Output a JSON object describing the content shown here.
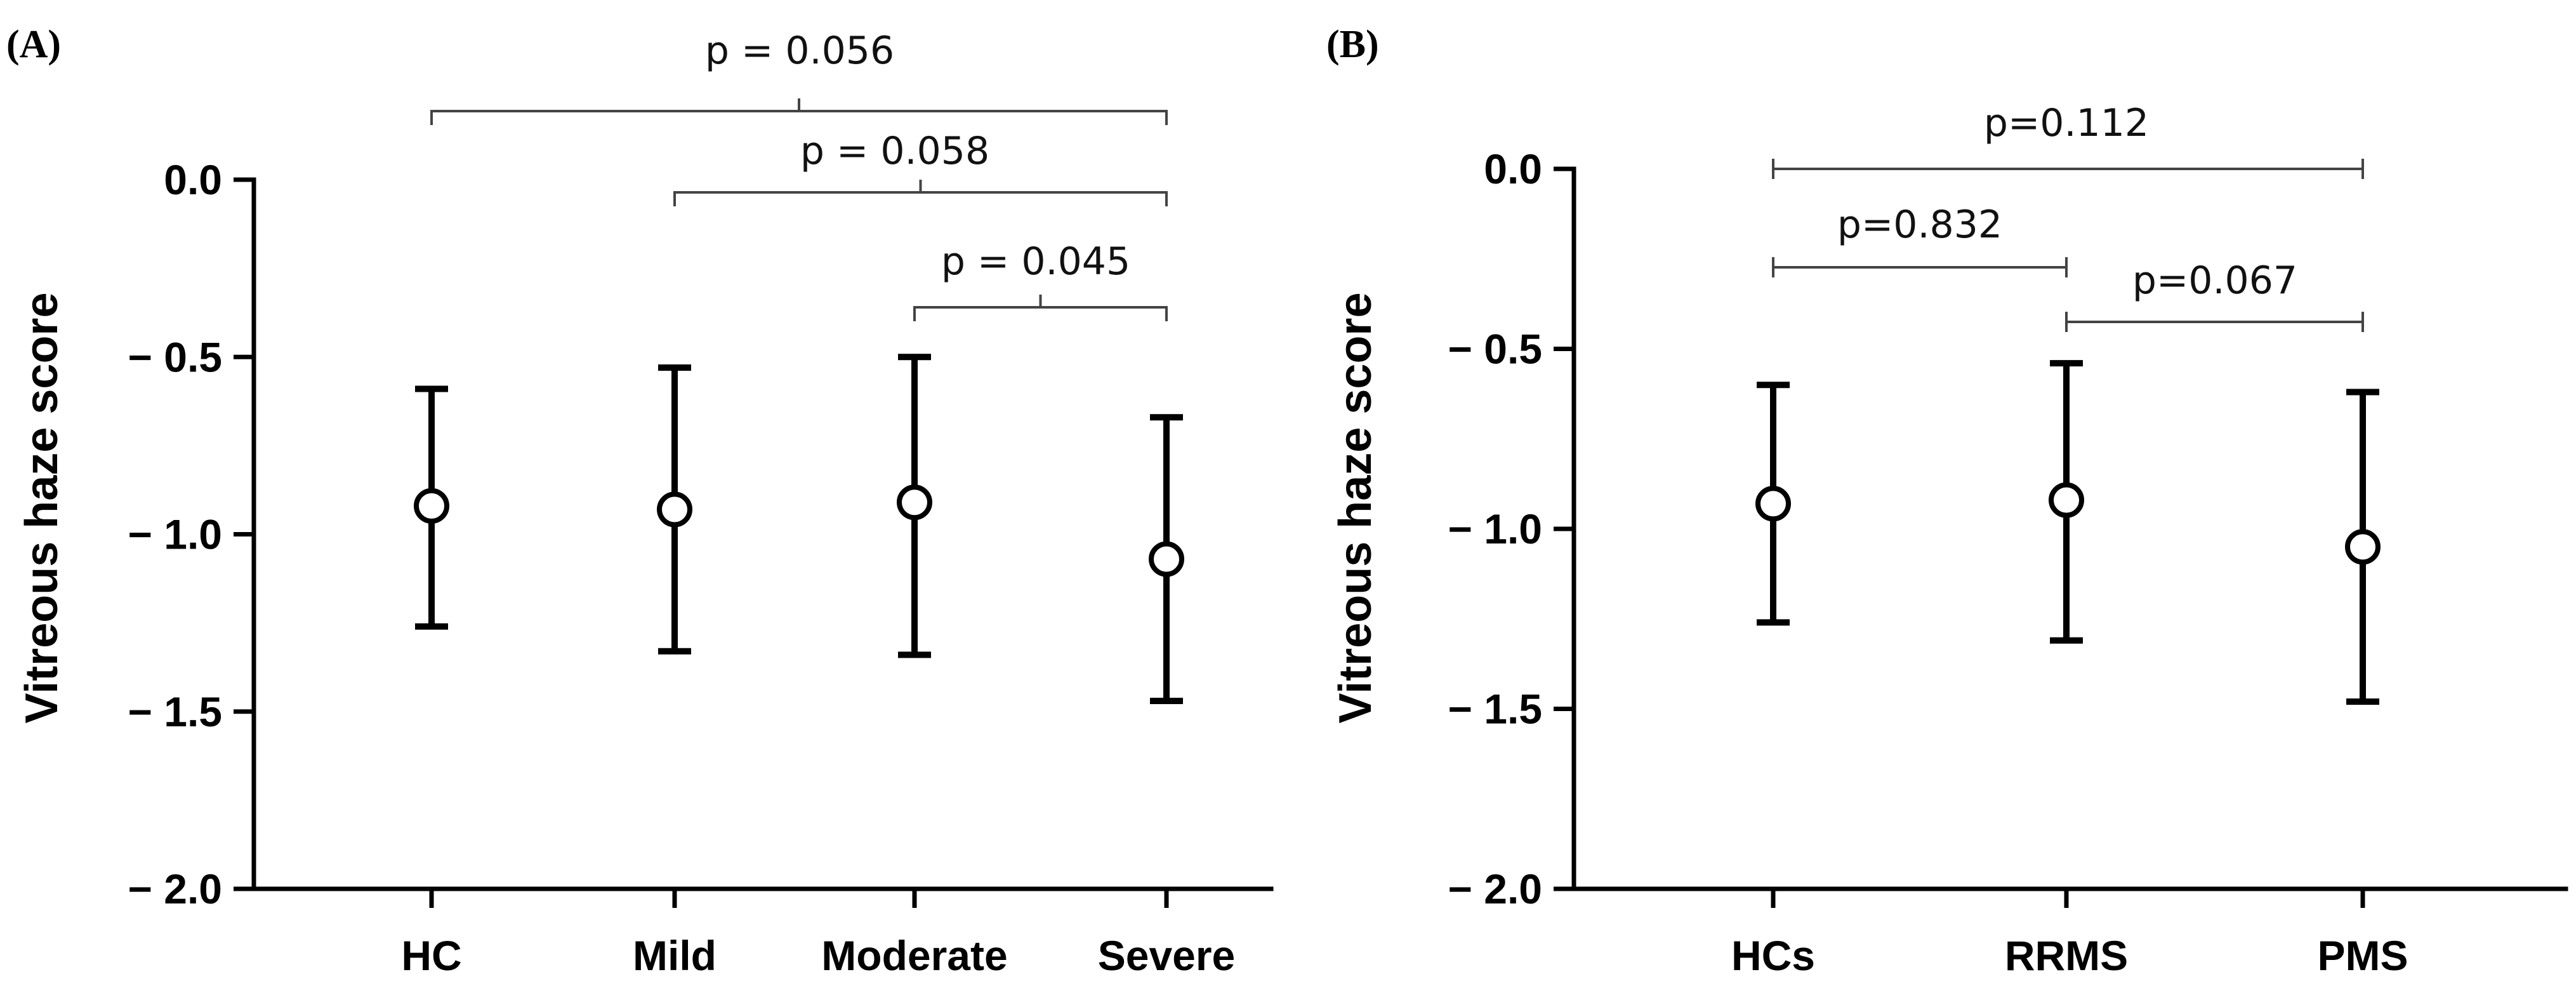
{
  "chart_data": [
    {
      "type": "scatter",
      "panel_label": "(A)",
      "ylabel": "Vitreous haze score",
      "ylim": [
        -2.0,
        0.0
      ],
      "yticks": [
        0.0,
        -0.5,
        -1.0,
        -1.5,
        -2.0
      ],
      "ytick_labels": [
        "0.0",
        "− 0.5",
        "− 1.0",
        "− 1.5",
        "− 2.0"
      ],
      "categories": [
        "HC",
        "Mild",
        "Moderate",
        "Severe"
      ],
      "means": [
        -0.92,
        -0.93,
        -0.91,
        -1.07
      ],
      "upper": [
        -0.59,
        -0.53,
        -0.5,
        -0.67
      ],
      "lower": [
        -1.26,
        -1.33,
        -1.34,
        -1.47
      ],
      "comparisons": [
        {
          "from": 0,
          "to": 3,
          "label": "p = 0.056",
          "style": "brace"
        },
        {
          "from": 1,
          "to": 3,
          "label": "p = 0.058",
          "style": "brace"
        },
        {
          "from": 2,
          "to": 3,
          "label": "p = 0.045",
          "style": "brace"
        }
      ]
    },
    {
      "type": "scatter",
      "panel_label": "(B)",
      "ylabel": "Vitreous haze score",
      "ylim": [
        -2.0,
        0.0
      ],
      "yticks": [
        0.0,
        -0.5,
        -1.0,
        -1.5,
        -2.0
      ],
      "ytick_labels": [
        "0.0",
        "− 0.5",
        "− 1.0",
        "− 1.5",
        "− 2.0"
      ],
      "categories": [
        "HCs",
        "RRMS",
        "PMS"
      ],
      "means": [
        -0.93,
        -0.92,
        -1.05
      ],
      "upper": [
        -0.6,
        -0.54,
        -0.62
      ],
      "lower": [
        -1.26,
        -1.31,
        -1.48
      ],
      "comparisons": [
        {
          "from": 0,
          "to": 2,
          "label": "p=0.112",
          "style": "bar"
        },
        {
          "from": 0,
          "to": 1,
          "label": "p=0.832",
          "style": "bar"
        },
        {
          "from": 1,
          "to": 2,
          "label": "p=0.067",
          "style": "bar"
        }
      ]
    }
  ]
}
